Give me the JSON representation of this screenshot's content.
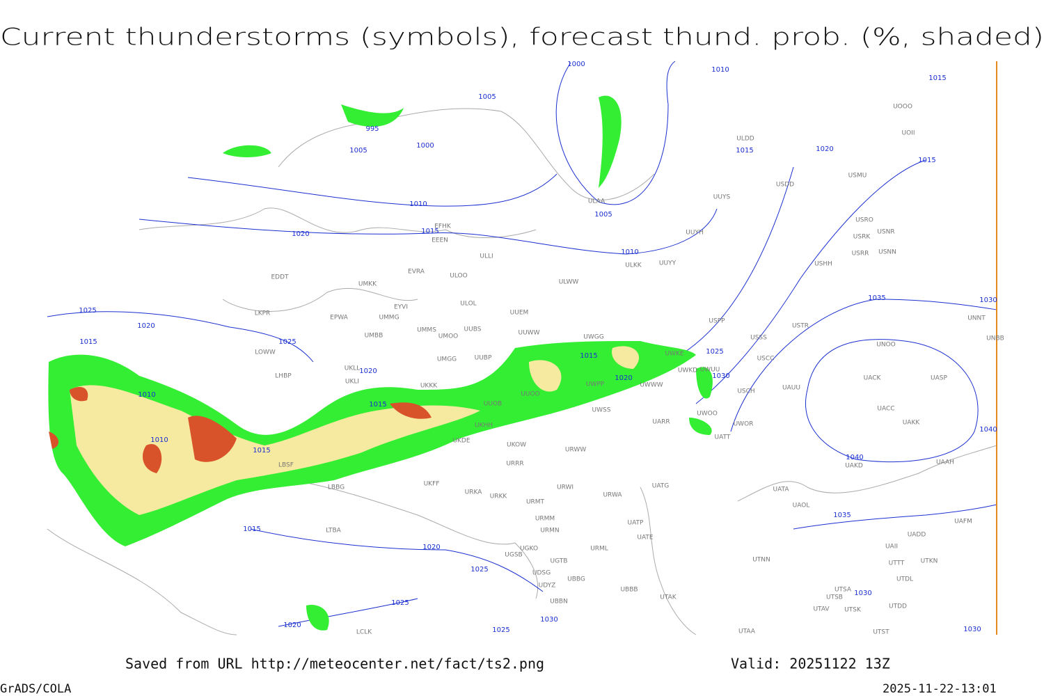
{
  "title": "Current thunderstorms (symbols), forecast thund. prob. (%, shaded)",
  "footer": {
    "source": "Saved from URL http://meteocenter.net/fact/ts2.png",
    "valid": "Valid: 20251122 13Z",
    "software": "GrADS/COLA",
    "timestamp": "2025-11-22-13:01"
  },
  "isobar_labels": [
    "1000",
    "1010",
    "1015",
    "1005",
    "995",
    "1000",
    "1005",
    "1015",
    "1020",
    "1015",
    "1010",
    "1005",
    "1015",
    "1020",
    "1010",
    "1035",
    "1030",
    "1025",
    "1020",
    "1025",
    "1015",
    "1015",
    "1025",
    "1030",
    "1020",
    "1010",
    "1015",
    "1020",
    "1010",
    "1015",
    "1040",
    "1040",
    "1035",
    "1015",
    "1020",
    "1025",
    "1025",
    "1030",
    "1030",
    "1020",
    "1025",
    "1030"
  ],
  "stations": [
    "UUYS",
    "ULAA",
    "ULDD",
    "UOII",
    "UOOO",
    "USMU",
    "USDD",
    "UUYH",
    "USRO",
    "USRK",
    "USNR",
    "USRR",
    "USNN",
    "USHH",
    "ULKK",
    "UUYY",
    "ULWW",
    "ULLI",
    "EFHK",
    "EEEN",
    "EVRA",
    "ULOO",
    "UMKK",
    "EDDT",
    "ULOL",
    "UUEM",
    "EYVI",
    "UMMG",
    "LKPR",
    "EPWA",
    "UMMS",
    "UUBS",
    "UMOO",
    "UMBB",
    "UUWW",
    "UWGG",
    "USPP",
    "USTR",
    "USSS",
    "LOWW",
    "UMGG",
    "UUBP",
    "UWKE",
    "USCC",
    "UKLL",
    "UKLI",
    "LHBP",
    "UKKK",
    "UWKD",
    "UNOO",
    "UNBB",
    "UNNT",
    "USCH",
    "UAUU",
    "UACK",
    "UASP",
    "UWUU",
    "UWWW",
    "UUOO",
    "UWPP",
    "UUOB",
    "UKHH",
    "UKDE",
    "UWSS",
    "UWOO",
    "UWOR",
    "UATT",
    "UARR",
    "UACC",
    "UAKK",
    "URWW",
    "UKOW",
    "LBSF",
    "URRR",
    "UAKD",
    "UAAH",
    "UKFF",
    "LBBG",
    "URKA",
    "URKK",
    "URWI",
    "UATG",
    "URWA",
    "UATA",
    "UAOL",
    "URMT",
    "URMM",
    "URMN",
    "UATP",
    "UATE",
    "UAFM",
    "UADD",
    "LTBA",
    "UGKO",
    "UGSB",
    "UGTB",
    "URML",
    "UAII",
    "UTTT",
    "UTKN",
    "UTNN",
    "UDSG",
    "UBBG",
    "UDYZ",
    "UTDL",
    "UBBB",
    "UTSA",
    "UTAK",
    "UBBN",
    "UTSB",
    "UTAV",
    "UTSK",
    "UTDD",
    "LCLK",
    "UTAA",
    "UTST"
  ]
}
